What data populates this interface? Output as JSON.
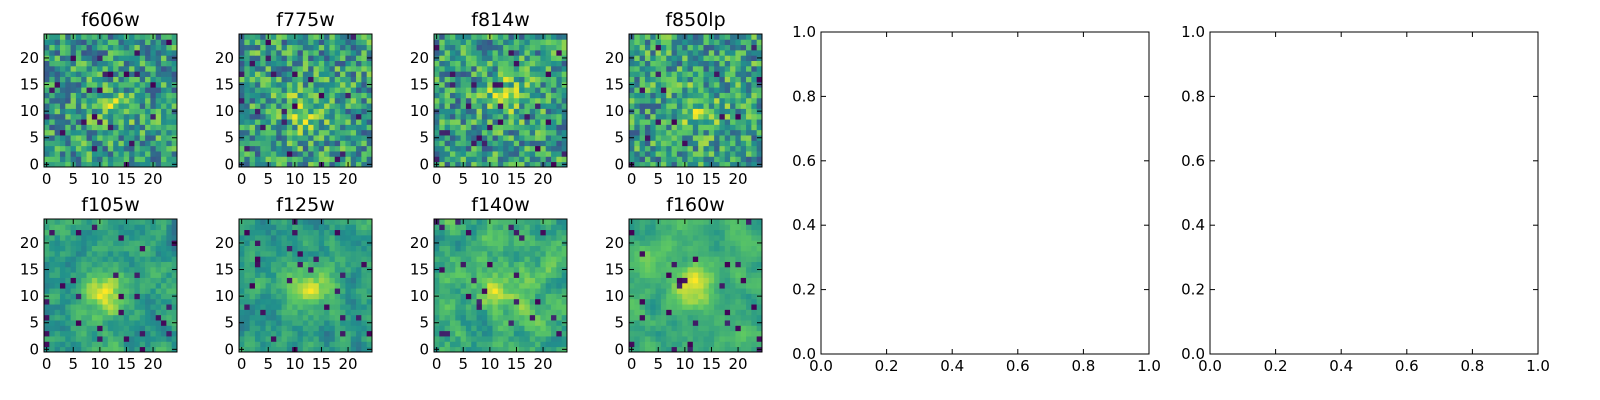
{
  "chart_data": [
    {
      "type": "heatmap",
      "title": "f606w",
      "rows": 25,
      "cols": 25,
      "xlim": [
        0,
        24
      ],
      "ylim": [
        0,
        24
      ],
      "xticks": [
        "0",
        "5",
        "10",
        "15",
        "20"
      ],
      "yticks": [
        "0",
        "5",
        "10",
        "15",
        "20"
      ],
      "colormap": "viridis",
      "seed": 11,
      "blob": [
        12,
        11
      ],
      "blob_strength": 0.25,
      "smooth": 0.1
    },
    {
      "type": "heatmap",
      "title": "f775w",
      "rows": 25,
      "cols": 25,
      "xlim": [
        0,
        24
      ],
      "ylim": [
        0,
        24
      ],
      "xticks": [
        "0",
        "5",
        "10",
        "15",
        "20"
      ],
      "yticks": [
        "0",
        "5",
        "10",
        "15",
        "20"
      ],
      "colormap": "viridis",
      "seed": 23,
      "blob": [
        12,
        10
      ],
      "blob_strength": 0.3,
      "smooth": 0.1
    },
    {
      "type": "heatmap",
      "title": "f814w",
      "rows": 25,
      "cols": 25,
      "xlim": [
        0,
        24
      ],
      "ylim": [
        0,
        24
      ],
      "xticks": [
        "0",
        "5",
        "10",
        "15",
        "20"
      ],
      "yticks": [
        "0",
        "5",
        "10",
        "15",
        "20"
      ],
      "colormap": "viridis",
      "seed": 37,
      "blob": [
        13,
        13
      ],
      "blob_strength": 0.3,
      "smooth": 0.1
    },
    {
      "type": "heatmap",
      "title": "f850lp",
      "rows": 25,
      "cols": 25,
      "xlim": [
        0,
        24
      ],
      "ylim": [
        0,
        24
      ],
      "xticks": [
        "0",
        "5",
        "10",
        "15",
        "20"
      ],
      "yticks": [
        "0",
        "5",
        "10",
        "15",
        "20"
      ],
      "colormap": "viridis",
      "seed": 41,
      "blob": [
        13,
        10
      ],
      "blob_strength": 0.25,
      "smooth": 0.1
    },
    {
      "type": "heatmap",
      "title": "f105w",
      "rows": 25,
      "cols": 25,
      "xlim": [
        0,
        24
      ],
      "ylim": [
        0,
        24
      ],
      "xticks": [
        "0",
        "5",
        "10",
        "15",
        "20"
      ],
      "yticks": [
        "0",
        "5",
        "10",
        "15",
        "20"
      ],
      "colormap": "viridis",
      "seed": 53,
      "blob": [
        11,
        10
      ],
      "blob_strength": 0.45,
      "smooth": 0.55
    },
    {
      "type": "heatmap",
      "title": "f125w",
      "rows": 25,
      "cols": 25,
      "xlim": [
        0,
        24
      ],
      "ylim": [
        0,
        24
      ],
      "xticks": [
        "0",
        "5",
        "10",
        "15",
        "20"
      ],
      "yticks": [
        "0",
        "5",
        "10",
        "15",
        "20"
      ],
      "colormap": "viridis",
      "seed": 67,
      "blob": [
        13,
        12
      ],
      "blob_strength": 0.4,
      "smooth": 0.55
    },
    {
      "type": "heatmap",
      "title": "f140w",
      "rows": 25,
      "cols": 25,
      "xlim": [
        0,
        24
      ],
      "ylim": [
        0,
        24
      ],
      "xticks": [
        "0",
        "5",
        "10",
        "15",
        "20"
      ],
      "yticks": [
        "0",
        "5",
        "10",
        "15",
        "20"
      ],
      "colormap": "viridis",
      "seed": 79,
      "blob": [
        12,
        11
      ],
      "blob_strength": 0.3,
      "smooth": 0.6
    },
    {
      "type": "heatmap",
      "title": "f160w",
      "rows": 25,
      "cols": 25,
      "xlim": [
        0,
        24
      ],
      "ylim": [
        0,
        24
      ],
      "xticks": [
        "0",
        "5",
        "10",
        "15",
        "20"
      ],
      "yticks": [
        "0",
        "5",
        "10",
        "15",
        "20"
      ],
      "colormap": "viridis",
      "seed": 83,
      "blob": [
        12,
        12
      ],
      "blob_strength": 0.4,
      "smooth": 0.65
    },
    {
      "type": "scatter",
      "title": "",
      "x": [],
      "y": [],
      "xlim": [
        0,
        1
      ],
      "ylim": [
        0,
        1
      ],
      "xticks": [
        "0.0",
        "0.2",
        "0.4",
        "0.6",
        "0.8",
        "1.0"
      ],
      "yticks": [
        "0.0",
        "0.2",
        "0.4",
        "0.6",
        "0.8",
        "1.0"
      ]
    },
    {
      "type": "scatter",
      "title": "",
      "x": [],
      "y": [],
      "xlim": [
        0,
        1
      ],
      "ylim": [
        0,
        1
      ],
      "xticks": [
        "0.0",
        "0.2",
        "0.4",
        "0.6",
        "0.8",
        "1.0"
      ],
      "yticks": [
        "0.0",
        "0.2",
        "0.4",
        "0.6",
        "0.8",
        "1.0"
      ]
    }
  ],
  "colors": {
    "viridis": [
      "#440154",
      "#3b528b",
      "#21918c",
      "#5ec962",
      "#fde725"
    ],
    "axis": "#000000",
    "background": "#ffffff"
  }
}
